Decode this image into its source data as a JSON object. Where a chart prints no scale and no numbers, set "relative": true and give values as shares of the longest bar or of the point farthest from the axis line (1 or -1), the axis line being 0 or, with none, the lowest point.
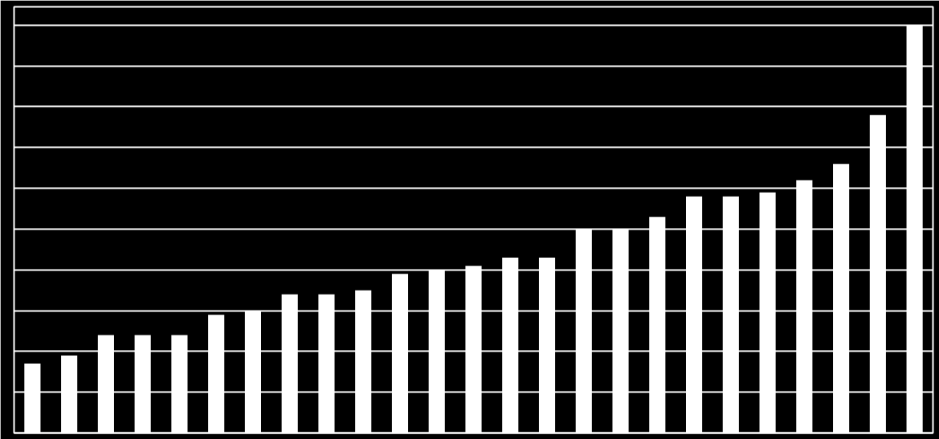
{
  "chart_data": {
    "type": "bar",
    "relative": true,
    "color": "#ffffff",
    "grid": "y",
    "tick_labels": false,
    "categories": [
      null,
      null,
      null,
      null,
      null,
      null,
      null,
      null,
      null,
      null,
      null,
      null,
      null,
      null,
      null,
      null,
      null,
      null,
      null,
      null,
      null,
      null,
      null,
      null,
      null
    ],
    "values": [
      0.17,
      0.19,
      0.24,
      0.24,
      0.24,
      0.29,
      0.3,
      0.34,
      0.34,
      0.35,
      0.39,
      0.4,
      0.41,
      0.43,
      0.43,
      0.5,
      0.5,
      0.53,
      0.58,
      0.58,
      0.59,
      0.62,
      0.66,
      0.78,
      1
    ]
  }
}
